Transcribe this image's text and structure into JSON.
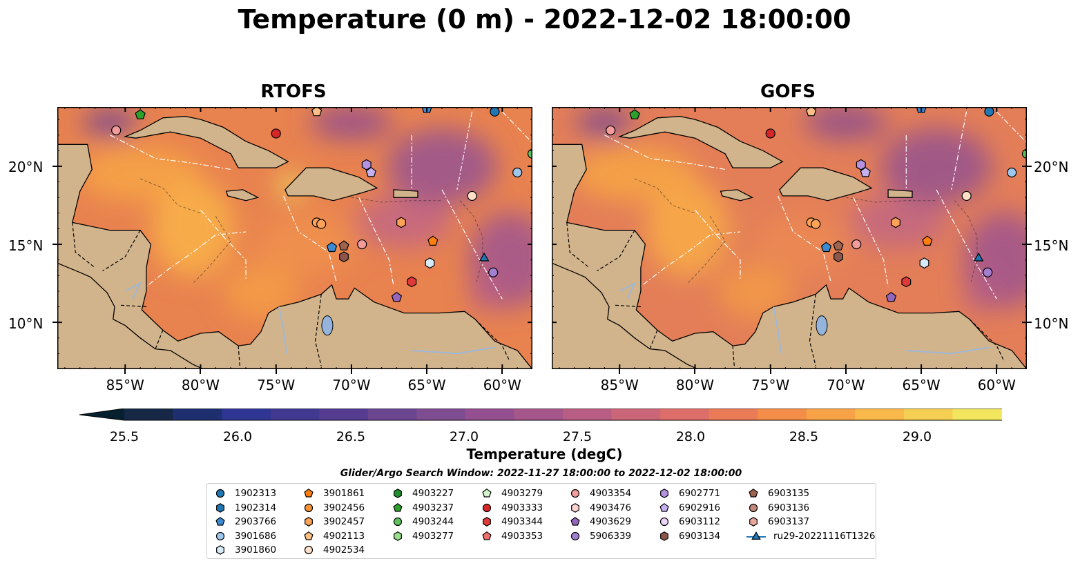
{
  "title": "Temperature (0 m) - 2022-12-02 18:00:00",
  "panels": [
    {
      "title": "RTOFS"
    },
    {
      "title": "GOFS"
    }
  ],
  "lat_labels": [
    "20°N",
    "15°N",
    "10°N"
  ],
  "lon_labels": [
    "85°W",
    "80°W",
    "75°W",
    "70°W",
    "65°W",
    "60°W"
  ],
  "colorbar": {
    "label": "Temperature (degC)",
    "ticks": [
      "25.5",
      "26.0",
      "26.5",
      "27.0",
      "27.5",
      "28.0",
      "28.5",
      "29.0"
    ],
    "colors": [
      "#06202e",
      "#162846",
      "#1e2f70",
      "#2e3593",
      "#40398f",
      "#553c91",
      "#6a4590",
      "#7e4c91",
      "#934f8f",
      "#a5578b",
      "#b85e84",
      "#cb6679",
      "#dd6e6a",
      "#eb7a57",
      "#f48d48",
      "#f7a247",
      "#f8b84a",
      "#f5cf52",
      "#f1e65e",
      "#e9fa5b"
    ]
  },
  "search_window": "Glider/Argo Search Window: 2022-11-27 18:00:00 to 2022-12-02 18:00:00",
  "legend": {
    "columns": [
      [
        {
          "label": "1902313",
          "color": "#1f77b4",
          "marker": "circle"
        },
        {
          "label": "1902314",
          "color": "#1f77b4",
          "marker": "hexagon"
        },
        {
          "label": "2903766",
          "color": "#3d8ad4",
          "marker": "pentagon"
        },
        {
          "label": "3901686",
          "color": "#9dc7ec",
          "marker": "circle"
        },
        {
          "label": "3901860",
          "color": "#d6eaf8",
          "marker": "hexagon"
        }
      ],
      [
        {
          "label": "3901861",
          "color": "#ff7f0e",
          "marker": "pentagon"
        },
        {
          "label": "3902456",
          "color": "#f99238",
          "marker": "circle"
        },
        {
          "label": "3902457",
          "color": "#fda257",
          "marker": "hexagon"
        },
        {
          "label": "4902113",
          "color": "#fdbf85",
          "marker": "pentagon"
        },
        {
          "label": "4902534",
          "color": "#fde0c6",
          "marker": "circle"
        }
      ],
      [
        {
          "label": "4903227",
          "color": "#1f8f2b",
          "marker": "hexagon"
        },
        {
          "label": "4903237",
          "color": "#2ca02c",
          "marker": "pentagon"
        },
        {
          "label": "4903244",
          "color": "#5cc35c",
          "marker": "circle"
        },
        {
          "label": "4903277",
          "color": "#98df8a",
          "marker": "hexagon"
        }
      ],
      [
        {
          "label": "4903279",
          "color": "#d4f5cc",
          "marker": "pentagon"
        },
        {
          "label": "4903333",
          "color": "#d62728",
          "marker": "circle"
        },
        {
          "label": "4903344",
          "color": "#e0393a",
          "marker": "hexagon"
        },
        {
          "label": "4903353",
          "color": "#f07070",
          "marker": "pentagon"
        }
      ],
      [
        {
          "label": "4903354",
          "color": "#f49b9b",
          "marker": "circle"
        },
        {
          "label": "4903476",
          "color": "#fcd3d3",
          "marker": "hexagon"
        },
        {
          "label": "4903629",
          "color": "#9467bd",
          "marker": "pentagon"
        },
        {
          "label": "5906339",
          "color": "#a37fd1",
          "marker": "circle"
        }
      ],
      [
        {
          "label": "6902771",
          "color": "#b592e0",
          "marker": "hexagon"
        },
        {
          "label": "6902916",
          "color": "#c5b0f0",
          "marker": "pentagon"
        },
        {
          "label": "6903112",
          "color": "#ead4f8",
          "marker": "circle"
        },
        {
          "label": "6903134",
          "color": "#8c564b",
          "marker": "hexagon"
        }
      ],
      [
        {
          "label": "6903135",
          "color": "#a0634f",
          "marker": "pentagon"
        },
        {
          "label": "6903136",
          "color": "#c2877a",
          "marker": "circle"
        },
        {
          "label": "6903137",
          "color": "#e8a69a",
          "marker": "hexagon"
        },
        {
          "label": "ru29-20221116T1326",
          "color": "#1f77b4",
          "marker": "triangle-line"
        }
      ]
    ]
  },
  "floats_on_map": [
    {
      "lon": -85.6,
      "lat": 22.3,
      "color": "#f49b9b",
      "marker": "circle"
    },
    {
      "lon": -84.0,
      "lat": 23.3,
      "color": "#2ca02c",
      "marker": "pentagon"
    },
    {
      "lon": -75.0,
      "lat": 22.1,
      "color": "#d62728",
      "marker": "circle"
    },
    {
      "lon": -72.3,
      "lat": 23.5,
      "color": "#fdbf85",
      "marker": "pentagon"
    },
    {
      "lon": -65.0,
      "lat": 23.7,
      "color": "#3d8ad4",
      "marker": "pentagon"
    },
    {
      "lon": -60.5,
      "lat": 23.5,
      "color": "#1f77b4",
      "marker": "circle"
    },
    {
      "lon": -58.0,
      "lat": 20.8,
      "color": "#5cc35c",
      "marker": "circle"
    },
    {
      "lon": -59.0,
      "lat": 19.6,
      "color": "#9dc7ec",
      "marker": "circle"
    },
    {
      "lon": -69.0,
      "lat": 20.1,
      "color": "#b592e0",
      "marker": "hexagon"
    },
    {
      "lon": -68.7,
      "lat": 19.6,
      "color": "#c5b0f0",
      "marker": "pentagon"
    },
    {
      "lon": -62.0,
      "lat": 18.1,
      "color": "#fde0c6",
      "marker": "circle"
    },
    {
      "lon": -72.3,
      "lat": 16.4,
      "color": "#fda257",
      "marker": "circle"
    },
    {
      "lon": -72.0,
      "lat": 16.3,
      "color": "#fda257",
      "marker": "circle"
    },
    {
      "lon": -66.7,
      "lat": 16.4,
      "color": "#fda257",
      "marker": "hexagon"
    },
    {
      "lon": -64.6,
      "lat": 15.2,
      "color": "#ff7f0e",
      "marker": "pentagon"
    },
    {
      "lon": -71.3,
      "lat": 14.8,
      "color": "#3d8ad4",
      "marker": "pentagon"
    },
    {
      "lon": -70.5,
      "lat": 14.9,
      "color": "#a0634f",
      "marker": "pentagon"
    },
    {
      "lon": -70.5,
      "lat": 14.2,
      "color": "#8c564b",
      "marker": "hexagon"
    },
    {
      "lon": -69.3,
      "lat": 15.0,
      "color": "#f49b9b",
      "marker": "circle"
    },
    {
      "lon": -64.8,
      "lat": 13.8,
      "color": "#d6eaf8",
      "marker": "hexagon"
    },
    {
      "lon": -61.2,
      "lat": 14.1,
      "color": "#1f77b4",
      "marker": "triangle"
    },
    {
      "lon": -60.6,
      "lat": 13.2,
      "color": "#a37fd1",
      "marker": "circle"
    },
    {
      "lon": -66.0,
      "lat": 12.6,
      "color": "#e0393a",
      "marker": "hexagon"
    },
    {
      "lon": -67.0,
      "lat": 11.6,
      "color": "#9467bd",
      "marker": "pentagon"
    }
  ]
}
